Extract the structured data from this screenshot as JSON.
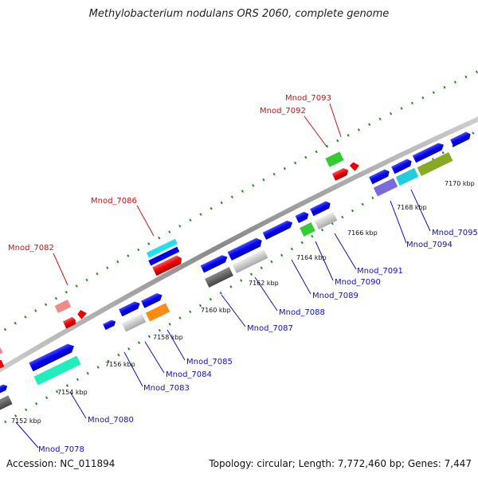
{
  "title": "Methylobacterium nodulans ORS 2060, complete genome",
  "accession": "Accession: NC_011894",
  "summary": "Topology: circular; Length: 7,772,460 bp; Genes: 7,447",
  "kbp_ticks": [
    "7152 kbp",
    "7154 kbp",
    "7156 kbp",
    "7158 kbp",
    "7160 kbp",
    "7162 kbp",
    "7164 kbp",
    "7166 kbp",
    "7168 kbp",
    "7170 kbp"
  ],
  "red_labels": [
    "Mnod_7082",
    "Mnod_7086",
    "Mnod_7092",
    "Mnod_7093"
  ],
  "blue_labels": [
    "Mnod_7078",
    "Mnod_7080",
    "Mnod_7083",
    "Mnod_7084",
    "Mnod_7085",
    "Mnod_7087",
    "Mnod_7088",
    "Mnod_7089",
    "Mnod_7090",
    "Mnod_7091",
    "Mnod_7094",
    "Mnod_7095"
  ],
  "colors": {
    "forward_gene": "#0000ee",
    "reverse_gene": "#ee0000",
    "backbone": "#909090",
    "tick_dots": "#228822",
    "red_label": "#cc1111",
    "blue_label": "#1111bb"
  }
}
